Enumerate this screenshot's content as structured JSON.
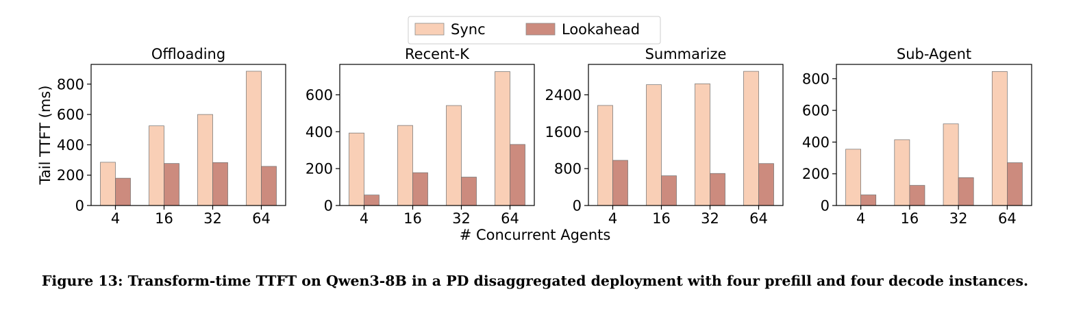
{
  "chart_data": {
    "type": "bar",
    "legend": {
      "position": "top-center",
      "entries": [
        {
          "name": "Sync",
          "color": "#f9cfb6"
        },
        {
          "name": "Lookahead",
          "color": "#cc8b7e"
        }
      ]
    },
    "shared_xlabel": "# Concurrent Agents",
    "shared_ylabel": "Tail TTFT (ms)",
    "panels": [
      {
        "title": "Offloading",
        "categories": [
          "4",
          "16",
          "32",
          "64"
        ],
        "ylim": [
          0,
          930
        ],
        "yticks": [
          0,
          200,
          400,
          600,
          800
        ],
        "series": [
          {
            "name": "Sync",
            "values": [
              285,
              525,
              600,
              885
            ]
          },
          {
            "name": "Lookahead",
            "values": [
              180,
              277,
              283,
              258
            ]
          }
        ]
      },
      {
        "title": "Recent-K",
        "categories": [
          "4",
          "16",
          "32",
          "64"
        ],
        "ylim": [
          0,
          765
        ],
        "yticks": [
          0,
          200,
          400,
          600
        ],
        "series": [
          {
            "name": "Sync",
            "values": [
              393,
              434,
              542,
              726
            ]
          },
          {
            "name": "Lookahead",
            "values": [
              57,
              178,
              154,
              331
            ]
          }
        ]
      },
      {
        "title": "Summarize",
        "categories": [
          "4",
          "16",
          "32",
          "64"
        ],
        "ylim": [
          0,
          3060
        ],
        "yticks": [
          0,
          800,
          1600,
          2400
        ],
        "series": [
          {
            "name": "Sync",
            "values": [
              2170,
              2620,
              2640,
              2910
            ]
          },
          {
            "name": "Lookahead",
            "values": [
              980,
              645,
              695,
              910
            ]
          }
        ]
      },
      {
        "title": "Sub-Agent",
        "categories": [
          "4",
          "16",
          "32",
          "64"
        ],
        "ylim": [
          0,
          890
        ],
        "yticks": [
          0,
          200,
          400,
          600,
          800
        ],
        "series": [
          {
            "name": "Sync",
            "values": [
              355,
              415,
              515,
              845
            ]
          },
          {
            "name": "Lookahead",
            "values": [
              67,
              127,
              176,
              270
            ]
          }
        ]
      }
    ]
  },
  "caption": "Figure 13: Transform-time TTFT on Qwen3-8B in a PD disaggregated deployment with four prefill and four decode instances."
}
